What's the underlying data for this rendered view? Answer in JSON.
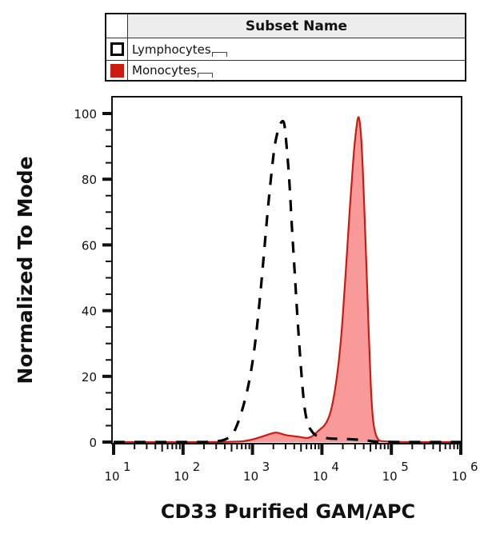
{
  "legend": {
    "header": "Subset Name",
    "items": [
      {
        "label": "Lymphocytes",
        "swatch": "open-black",
        "color": "#000000"
      },
      {
        "label": "Monocytes",
        "swatch": "filled-red",
        "color": "#cc1a10"
      }
    ]
  },
  "chart_data": {
    "type": "area",
    "title": "",
    "xlabel": "CD33 Purified GAM/APC",
    "ylabel": "Normalized To Mode",
    "xscale": "log",
    "xlim": [
      10,
      1000000
    ],
    "ylim": [
      0,
      100
    ],
    "x_ticks": [
      {
        "value": 10,
        "base": "10",
        "exp": "1"
      },
      {
        "value": 100,
        "base": "10",
        "exp": "2"
      },
      {
        "value": 1000,
        "base": "10",
        "exp": "3"
      },
      {
        "value": 10000,
        "base": "10",
        "exp": "4"
      },
      {
        "value": 100000,
        "base": "10",
        "exp": "5"
      },
      {
        "value": 1000000,
        "base": "10",
        "exp": "6"
      }
    ],
    "y_ticks": [
      0,
      20,
      40,
      60,
      80,
      100
    ],
    "grid": false,
    "legend_position": "top (table above plot)",
    "series": [
      {
        "name": "Lymphocytes",
        "style": "dashed-line",
        "color": "#000000",
        "filled": false,
        "points": [
          [
            10,
            0
          ],
          [
            100,
            0
          ],
          [
            300,
            0
          ],
          [
            450,
            1
          ],
          [
            550,
            3
          ],
          [
            700,
            9
          ],
          [
            900,
            18
          ],
          [
            1100,
            30
          ],
          [
            1300,
            45
          ],
          [
            1500,
            60
          ],
          [
            1700,
            73
          ],
          [
            1900,
            83
          ],
          [
            2100,
            91
          ],
          [
            2400,
            96
          ],
          [
            2700,
            98
          ],
          [
            2900,
            97
          ],
          [
            3100,
            90
          ],
          [
            3400,
            80
          ],
          [
            3700,
            65
          ],
          [
            4100,
            50
          ],
          [
            4500,
            36
          ],
          [
            5000,
            22
          ],
          [
            5600,
            10
          ],
          [
            6300,
            5
          ],
          [
            7000,
            3.5
          ],
          [
            8000,
            2
          ],
          [
            10000,
            1.5
          ],
          [
            13000,
            1
          ],
          [
            20000,
            1
          ],
          [
            30000,
            0.8
          ],
          [
            45000,
            0.5
          ],
          [
            60000,
            0
          ],
          [
            1000000,
            0
          ]
        ]
      },
      {
        "name": "Monocytes",
        "style": "filled-area",
        "color": "#cc1a10",
        "fill": "#f99a9a",
        "filled": true,
        "points": [
          [
            10,
            0
          ],
          [
            600,
            0
          ],
          [
            900,
            0.5
          ],
          [
            1300,
            1.5
          ],
          [
            1800,
            2.5
          ],
          [
            2200,
            3
          ],
          [
            2600,
            2.5
          ],
          [
            3200,
            2
          ],
          [
            4000,
            1.8
          ],
          [
            5000,
            1.5
          ],
          [
            6000,
            1.2
          ],
          [
            7000,
            1.5
          ],
          [
            8000,
            2.5
          ],
          [
            9500,
            4
          ],
          [
            11000,
            5
          ],
          [
            13000,
            8
          ],
          [
            15000,
            14
          ],
          [
            17000,
            22
          ],
          [
            19000,
            32
          ],
          [
            21000,
            45
          ],
          [
            23000,
            58
          ],
          [
            25000,
            70
          ],
          [
            27000,
            80
          ],
          [
            29000,
            89
          ],
          [
            31000,
            95
          ],
          [
            33500,
            100
          ],
          [
            36000,
            96
          ],
          [
            38500,
            85
          ],
          [
            41000,
            70
          ],
          [
            43500,
            55
          ],
          [
            46000,
            40
          ],
          [
            48500,
            27
          ],
          [
            51000,
            15
          ],
          [
            54000,
            7
          ],
          [
            58000,
            3
          ],
          [
            63000,
            1
          ],
          [
            70000,
            0
          ],
          [
            1000000,
            0
          ]
        ]
      }
    ]
  }
}
